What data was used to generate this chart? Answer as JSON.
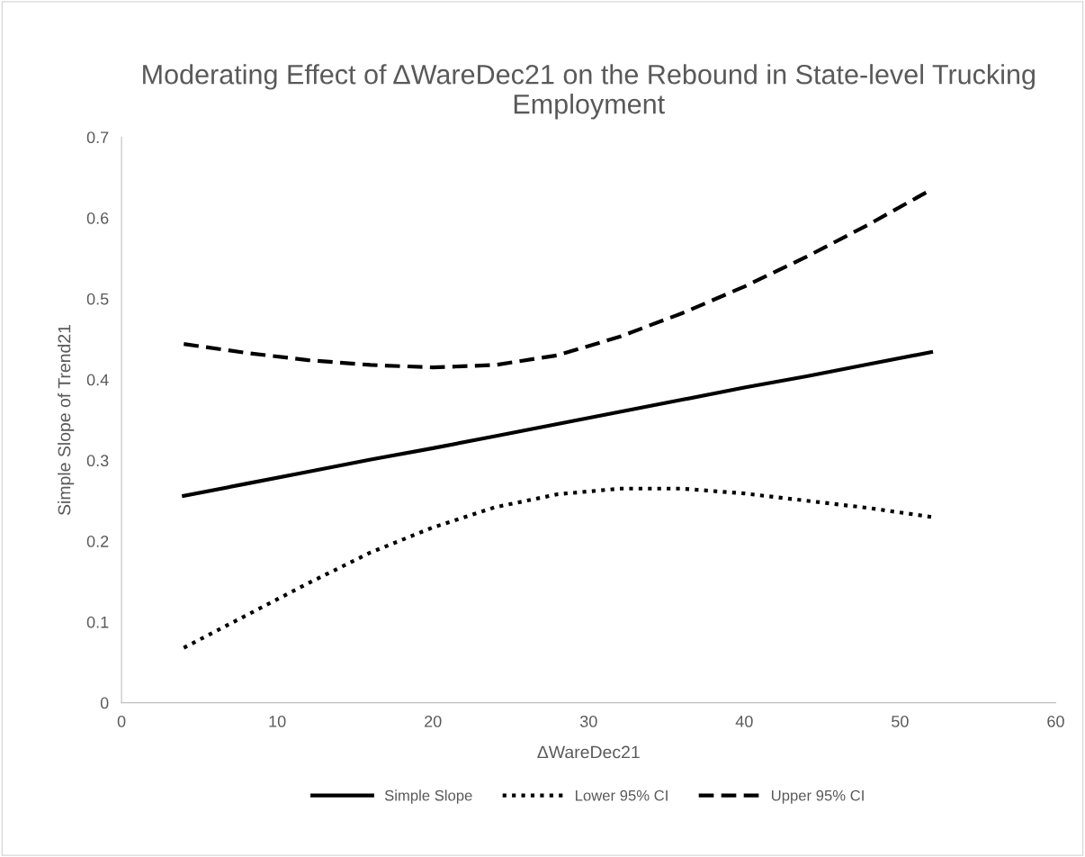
{
  "chart_data": {
    "type": "line",
    "title": "Moderating Effect of ΔWareDec21 on the Rebound in State-level Trucking Employment",
    "xlabel": "ΔWareDec21",
    "ylabel": "Simple Slope of Trend21",
    "xlim": [
      0,
      60
    ],
    "xticks": [
      0,
      10,
      20,
      30,
      40,
      50,
      60
    ],
    "ylim": [
      0,
      0.7
    ],
    "yticks": [
      0,
      0.1,
      0.2,
      0.3,
      0.4,
      0.5,
      0.6,
      0.7
    ],
    "grid": false,
    "legend": "bottom",
    "marker": "none",
    "x": [
      4,
      8,
      12,
      16,
      20,
      24,
      28,
      32,
      36,
      40,
      44,
      48,
      52
    ],
    "series": [
      {
        "name": "Simple Slope",
        "color": "#000000",
        "line_style": "solid",
        "values": [
          0.256,
          0.271,
          0.286,
          0.301,
          0.315,
          0.33,
          0.345,
          0.36,
          0.375,
          0.39,
          0.404,
          0.419,
          0.434
        ]
      },
      {
        "name": "Lower 95% CI",
        "color": "#000000",
        "line_style": "dotted",
        "values": [
          0.068,
          0.108,
          0.148,
          0.186,
          0.217,
          0.242,
          0.258,
          0.265,
          0.265,
          0.259,
          0.25,
          0.241,
          0.23
        ]
      },
      {
        "name": "Upper 95% CI",
        "color": "#000000",
        "line_style": "dashed",
        "values": [
          0.444,
          0.433,
          0.424,
          0.418,
          0.415,
          0.418,
          0.43,
          0.453,
          0.482,
          0.515,
          0.552,
          0.592,
          0.635
        ]
      }
    ]
  }
}
